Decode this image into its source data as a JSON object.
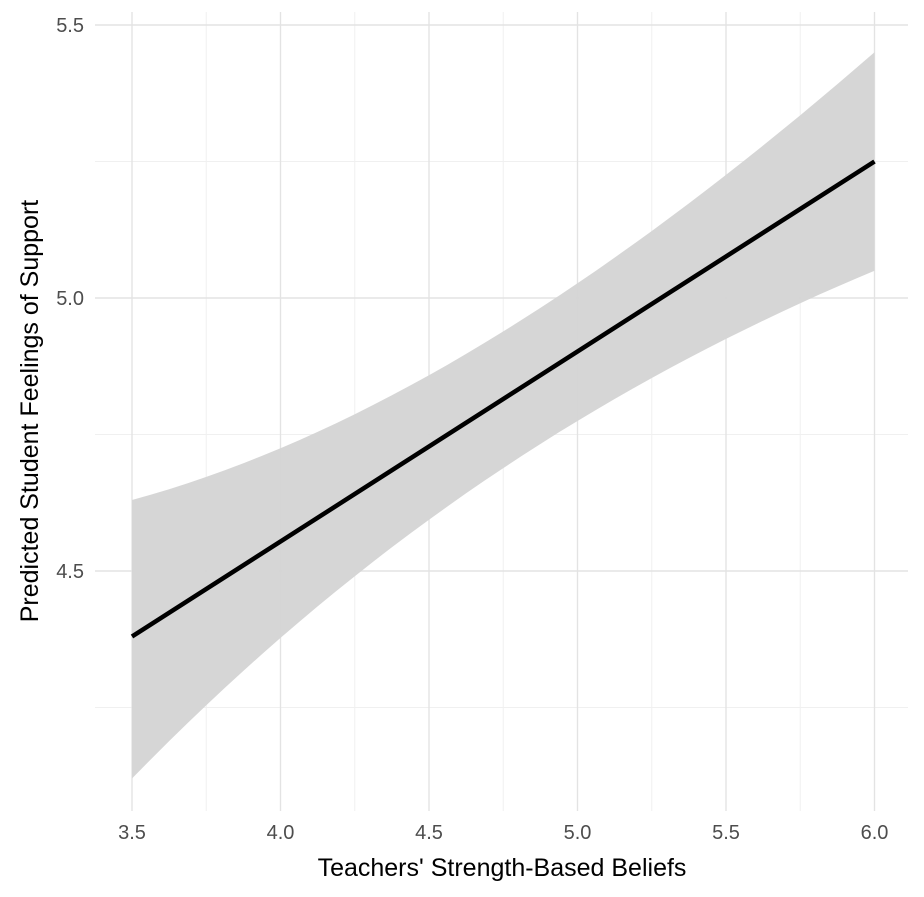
{
  "chart_data": {
    "type": "line",
    "xlabel": "Teachers' Strength-Based Beliefs",
    "ylabel": "Predicted Student Feelings of Support",
    "xlim": [
      3.5,
      6.0
    ],
    "ylim": [
      4.1,
      5.5
    ],
    "x_ticks": [
      "3.5",
      "4.0",
      "4.5",
      "5.0",
      "5.5",
      "6.0"
    ],
    "y_ticks": [
      "4.5",
      "5.0",
      "5.5"
    ],
    "grid": true,
    "series": [
      {
        "x": [
          3.5,
          6.0
        ],
        "y": [
          4.38,
          5.25
        ],
        "ci_lower": [
          4.12,
          5.05
        ],
        "ci_upper": [
          4.63,
          5.45
        ],
        "line_color": "#000000",
        "band_color": "#d4d4d4"
      }
    ]
  }
}
